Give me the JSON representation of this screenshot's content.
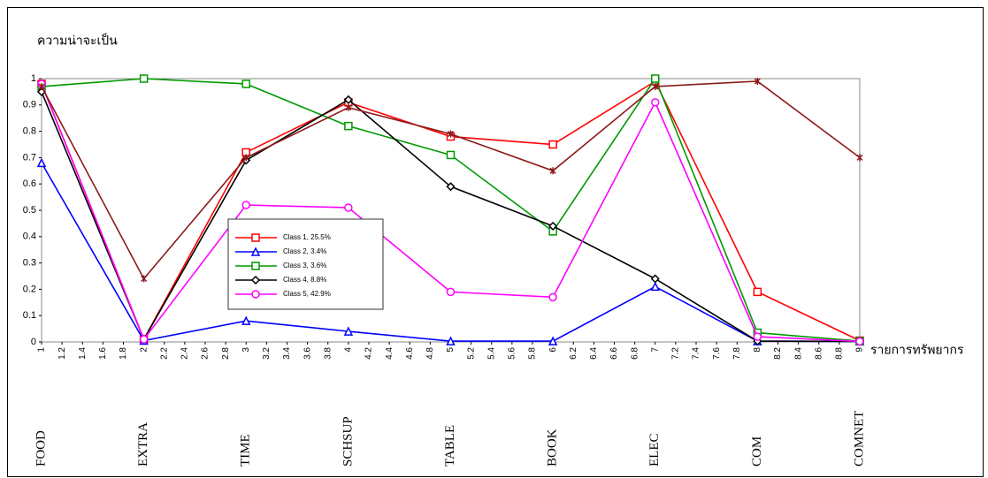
{
  "chart_data": {
    "type": "line",
    "y_label": "ความน่าจะเป็น",
    "x_label": "รายการทรัพยากร",
    "x": [
      1,
      2,
      3,
      4,
      5,
      6,
      7,
      8,
      9
    ],
    "categories": [
      "FOOD",
      "EXTRA",
      "TIME",
      "SCHSUP",
      "TABLE",
      "BOOK",
      "ELEC",
      "COM",
      "COMNET"
    ],
    "xlim": [
      1,
      9
    ],
    "xticks": [
      1,
      1.2,
      1.4,
      1.6,
      1.8,
      2,
      2.2,
      2.4,
      2.6,
      2.8,
      3,
      3.2,
      3.4,
      3.6,
      3.8,
      4,
      4.2,
      4.4,
      4.6,
      4.8,
      5,
      5.2,
      5.4,
      5.6,
      5.8,
      6,
      6.2,
      6.4,
      6.6,
      6.8,
      7,
      7.2,
      7.4,
      7.6,
      7.8,
      8,
      8.2,
      8.4,
      8.6,
      8.8,
      9
    ],
    "ylim": [
      0,
      1
    ],
    "yticks": [
      0,
      0.1,
      0.2,
      0.3,
      0.4,
      0.5,
      0.6,
      0.7,
      0.8,
      0.9,
      1
    ],
    "legend": true,
    "series": [
      {
        "name": "Class 1, 25.5%",
        "color": "#ff0000",
        "marker": "square",
        "values": [
          0.98,
          0.01,
          0.72,
          0.91,
          0.78,
          0.75,
          0.99,
          0.19,
          0.005
        ]
      },
      {
        "name": "Class 2, 3.4%",
        "color": "#0000ff",
        "marker": "triangle",
        "values": [
          0.68,
          0.005,
          0.08,
          0.04,
          0.003,
          0.003,
          0.21,
          0.003,
          0.002
        ]
      },
      {
        "name": "Class 3, 3.6%",
        "color": "#009900",
        "marker": "square",
        "values": [
          0.97,
          1.0,
          0.98,
          0.82,
          0.71,
          0.42,
          1.0,
          0.035,
          0.003
        ]
      },
      {
        "name": "Class 4, 8.8%",
        "color": "#000000",
        "marker": "diamond",
        "values": [
          0.95,
          0.01,
          0.69,
          0.92,
          0.59,
          0.44,
          0.24,
          0.003,
          0.002
        ]
      },
      {
        "name": "Class 5, 42.9%",
        "color": "#ff00ff",
        "marker": "circle",
        "values": [
          0.98,
          0.01,
          0.52,
          0.51,
          0.19,
          0.17,
          0.91,
          0.02,
          0.002
        ]
      },
      {
        "color": "#8b1a1a",
        "marker": "star",
        "values": [
          0.97,
          0.24,
          0.7,
          0.89,
          0.79,
          0.65,
          0.97,
          0.99,
          0.7
        ]
      }
    ]
  }
}
